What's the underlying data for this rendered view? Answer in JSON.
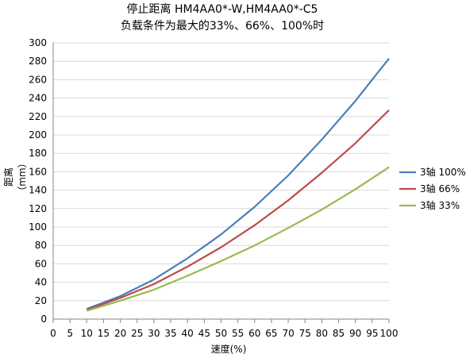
{
  "chart_data": {
    "type": "line",
    "title_line1": "停止距离 HM4AA0*-W,HM4AA0*-C5",
    "title_line2": "负载条件为最大的33%、66%、100%时",
    "xlabel": "速度(%)",
    "ylabel": "距离（mm）",
    "xlim": [
      0,
      100
    ],
    "ylim": [
      0,
      300
    ],
    "xticks": [
      0,
      5,
      10,
      15,
      20,
      25,
      30,
      35,
      40,
      45,
      50,
      55,
      60,
      65,
      70,
      75,
      80,
      85,
      90,
      95,
      100
    ],
    "yticks": [
      0,
      20,
      40,
      60,
      80,
      100,
      120,
      140,
      160,
      180,
      200,
      220,
      240,
      260,
      280,
      300
    ],
    "grid": "horizontal",
    "legend_position": "right",
    "x": [
      10,
      20,
      30,
      40,
      50,
      60,
      70,
      80,
      90,
      100
    ],
    "series": [
      {
        "name": "3轴 100%",
        "color": "#4a7ebb",
        "values": [
          11,
          25,
          43,
          66,
          92,
          122,
          156,
          195,
          237,
          283
        ]
      },
      {
        "name": "3轴 66%",
        "color": "#be4b48",
        "values": [
          10,
          23,
          38,
          57,
          78,
          102,
          129,
          159,
          191,
          227
        ]
      },
      {
        "name": "3轴 33%",
        "color": "#98b954",
        "values": [
          9,
          20,
          32,
          47,
          63,
          80,
          99,
          119,
          141,
          165
        ]
      }
    ]
  }
}
